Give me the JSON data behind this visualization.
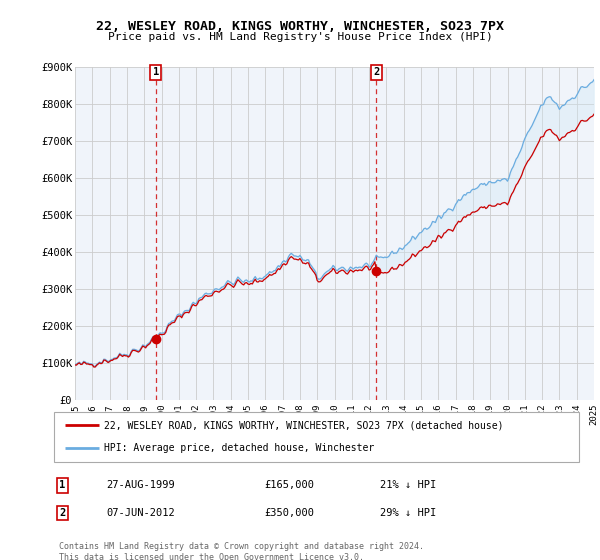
{
  "title": "22, WESLEY ROAD, KINGS WORTHY, WINCHESTER, SO23 7PX",
  "subtitle": "Price paid vs. HM Land Registry's House Price Index (HPI)",
  "ylim": [
    0,
    900000
  ],
  "yticks": [
    0,
    100000,
    200000,
    300000,
    400000,
    500000,
    600000,
    700000,
    800000,
    900000
  ],
  "ytick_labels": [
    "£0",
    "£100K",
    "£200K",
    "£300K",
    "£400K",
    "£500K",
    "£600K",
    "£700K",
    "£800K",
    "£900K"
  ],
  "hpi_color": "#6aace0",
  "hpi_fill_color": "#d0e8f5",
  "price_color": "#cc0000",
  "legend_label_price": "22, WESLEY ROAD, KINGS WORTHY, WINCHESTER, SO23 7PX (detached house)",
  "legend_label_hpi": "HPI: Average price, detached house, Winchester",
  "note1_date": "27-AUG-1999",
  "note1_price": "£165,000",
  "note1_hpi": "21% ↓ HPI",
  "note2_date": "07-JUN-2012",
  "note2_price": "£350,000",
  "note2_hpi": "29% ↓ HPI",
  "footer": "Contains HM Land Registry data © Crown copyright and database right 2024.\nThis data is licensed under the Open Government Licence v3.0.",
  "background_color": "#f0f4fa",
  "grid_color": "#cccccc",
  "purchase1_year": 1999.66,
  "purchase1_price": 165000,
  "purchase2_year": 2012.44,
  "purchase2_price": 350000
}
